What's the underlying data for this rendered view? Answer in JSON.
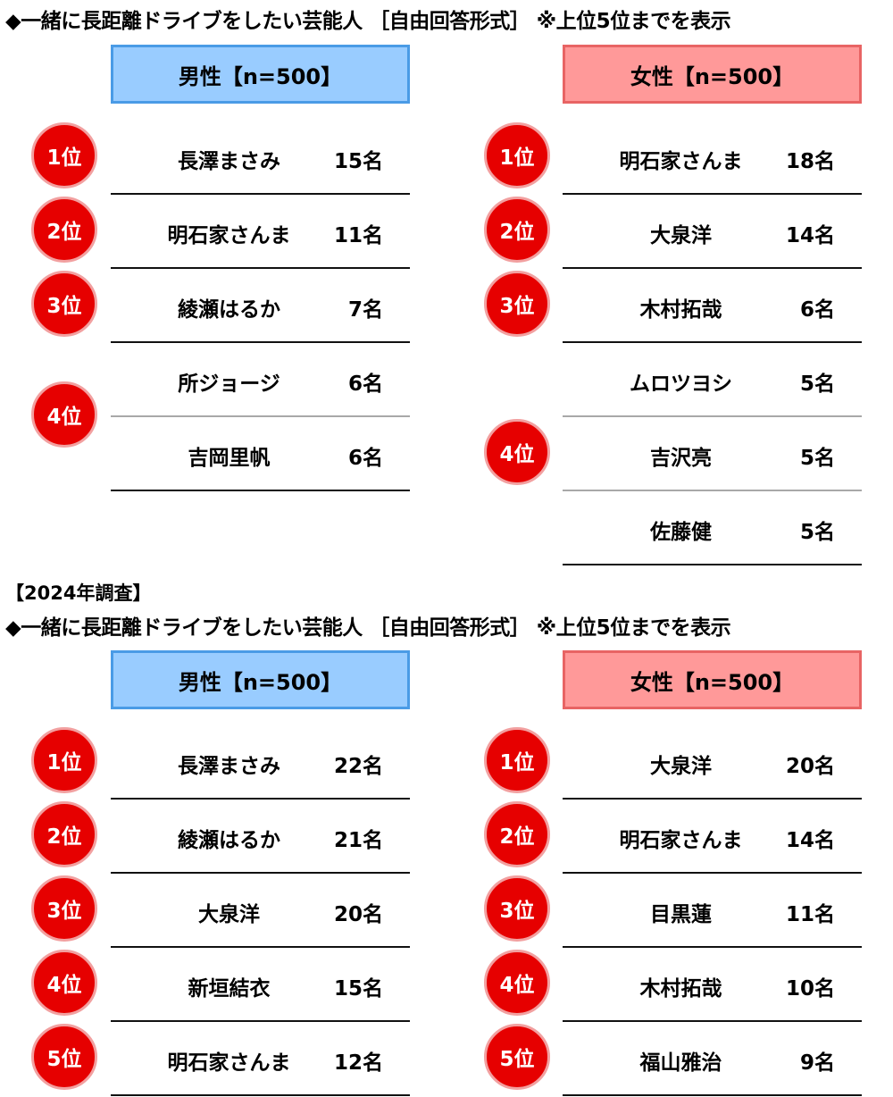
{
  "sections": [
    {
      "note": "",
      "title": "◆一緒に長距離ドライブをしたい芸能人 ［自由回答形式］ ※上位5位までを表示",
      "panels": [
        {
          "gender": "male",
          "header": "男性【n=500】",
          "groups": [
            {
              "rank": "1位",
              "entries": [
                {
                  "name": "長澤まさみ",
                  "count": "15名"
                }
              ]
            },
            {
              "rank": "2位",
              "entries": [
                {
                  "name": "明石家さんま",
                  "count": "11名"
                }
              ]
            },
            {
              "rank": "3位",
              "entries": [
                {
                  "name": "綾瀬はるか",
                  "count": "7名"
                }
              ]
            },
            {
              "rank": "4位",
              "entries": [
                {
                  "name": "所ジョージ",
                  "count": "6名"
                },
                {
                  "name": "吉岡里帆",
                  "count": "6名"
                }
              ]
            }
          ]
        },
        {
          "gender": "female",
          "header": "女性【n=500】",
          "groups": [
            {
              "rank": "1位",
              "entries": [
                {
                  "name": "明石家さんま",
                  "count": "18名"
                }
              ]
            },
            {
              "rank": "2位",
              "entries": [
                {
                  "name": "大泉洋",
                  "count": "14名"
                }
              ]
            },
            {
              "rank": "3位",
              "entries": [
                {
                  "name": "木村拓哉",
                  "count": "6名"
                }
              ]
            },
            {
              "rank": "4位",
              "entries": [
                {
                  "name": "ムロツヨシ",
                  "count": "5名"
                },
                {
                  "name": "吉沢亮",
                  "count": "5名"
                },
                {
                  "name": "佐藤健",
                  "count": "5名"
                }
              ]
            }
          ]
        }
      ]
    },
    {
      "note": "【2024年調査】",
      "title": "◆一緒に長距離ドライブをしたい芸能人 ［自由回答形式］ ※上位5位までを表示",
      "panels": [
        {
          "gender": "male",
          "header": "男性【n=500】",
          "groups": [
            {
              "rank": "1位",
              "entries": [
                {
                  "name": "長澤まさみ",
                  "count": "22名"
                }
              ]
            },
            {
              "rank": "2位",
              "entries": [
                {
                  "name": "綾瀬はるか",
                  "count": "21名"
                }
              ]
            },
            {
              "rank": "3位",
              "entries": [
                {
                  "name": "大泉洋",
                  "count": "20名"
                }
              ]
            },
            {
              "rank": "4位",
              "entries": [
                {
                  "name": "新垣結衣",
                  "count": "15名"
                }
              ]
            },
            {
              "rank": "5位",
              "entries": [
                {
                  "name": "明石家さんま",
                  "count": "12名"
                }
              ]
            }
          ]
        },
        {
          "gender": "female",
          "header": "女性【n=500】",
          "groups": [
            {
              "rank": "1位",
              "entries": [
                {
                  "name": "大泉洋",
                  "count": "20名"
                }
              ]
            },
            {
              "rank": "2位",
              "entries": [
                {
                  "name": "明石家さんま",
                  "count": "14名"
                }
              ]
            },
            {
              "rank": "3位",
              "entries": [
                {
                  "name": "目黒蓮",
                  "count": "11名"
                }
              ]
            },
            {
              "rank": "4位",
              "entries": [
                {
                  "name": "木村拓哉",
                  "count": "10名"
                }
              ]
            },
            {
              "rank": "5位",
              "entries": [
                {
                  "name": "福山雅治",
                  "count": "9名"
                }
              ]
            }
          ]
        }
      ]
    }
  ],
  "colors": {
    "male_header": "#99ccff",
    "female_header": "#ff9999",
    "badge": "#e60000"
  }
}
